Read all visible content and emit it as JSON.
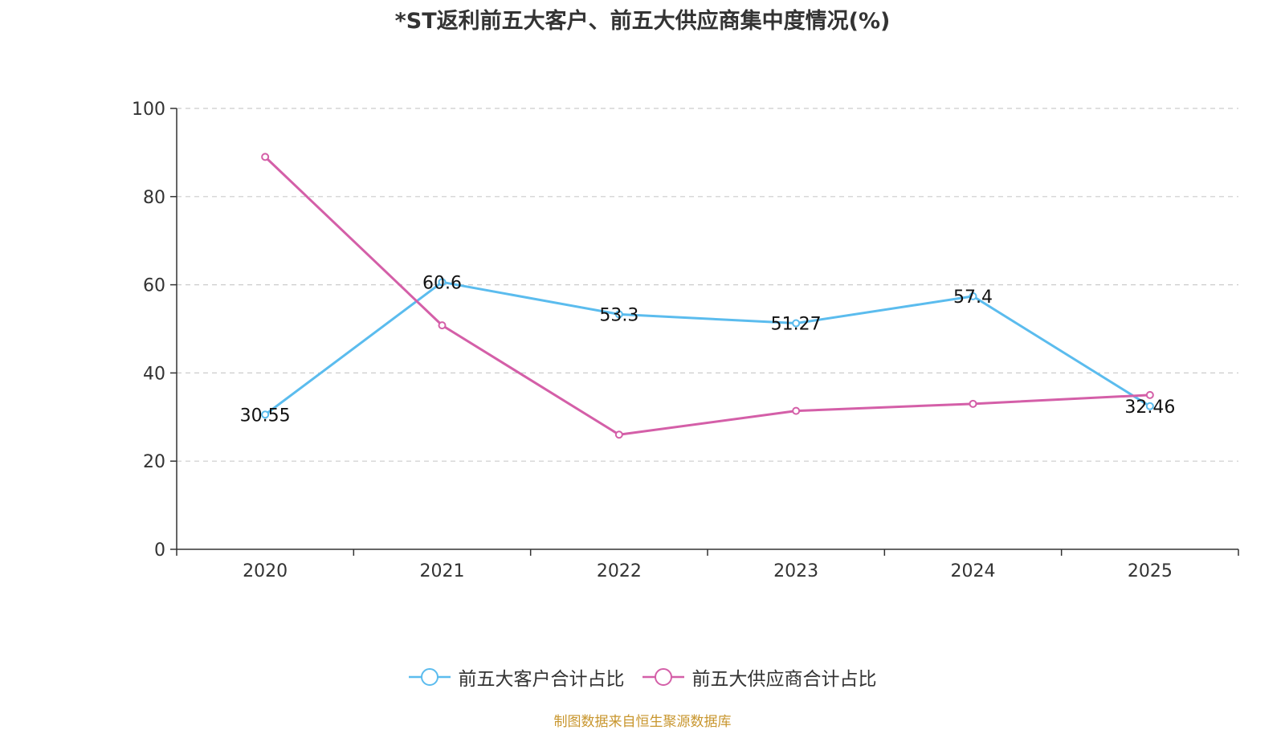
{
  "chart_data": {
    "type": "line",
    "title": "*ST返利前五大客户、前五大供应商集中度情况(%)",
    "categories": [
      "2020",
      "2021",
      "2022",
      "2023",
      "2024",
      "2025"
    ],
    "ylim": [
      0,
      100
    ],
    "yticks": [
      0,
      20,
      40,
      60,
      80,
      100
    ],
    "grid": true,
    "legend_position": "bottom",
    "series": [
      {
        "name": "前五大客户合计占比",
        "color": "#5bbcee",
        "values": [
          30.55,
          60.6,
          53.3,
          51.27,
          57.4,
          32.46
        ],
        "labels": [
          "30.55",
          "60.6",
          "53.3",
          "51.27",
          "57.4",
          "32.46"
        ]
      },
      {
        "name": "前五大供应商合计占比",
        "color": "#d45fa8",
        "values": [
          89.0,
          50.8,
          26.0,
          31.4,
          33.0,
          35.0
        ]
      }
    ],
    "source": "制图数据来自恒生聚源数据库"
  }
}
